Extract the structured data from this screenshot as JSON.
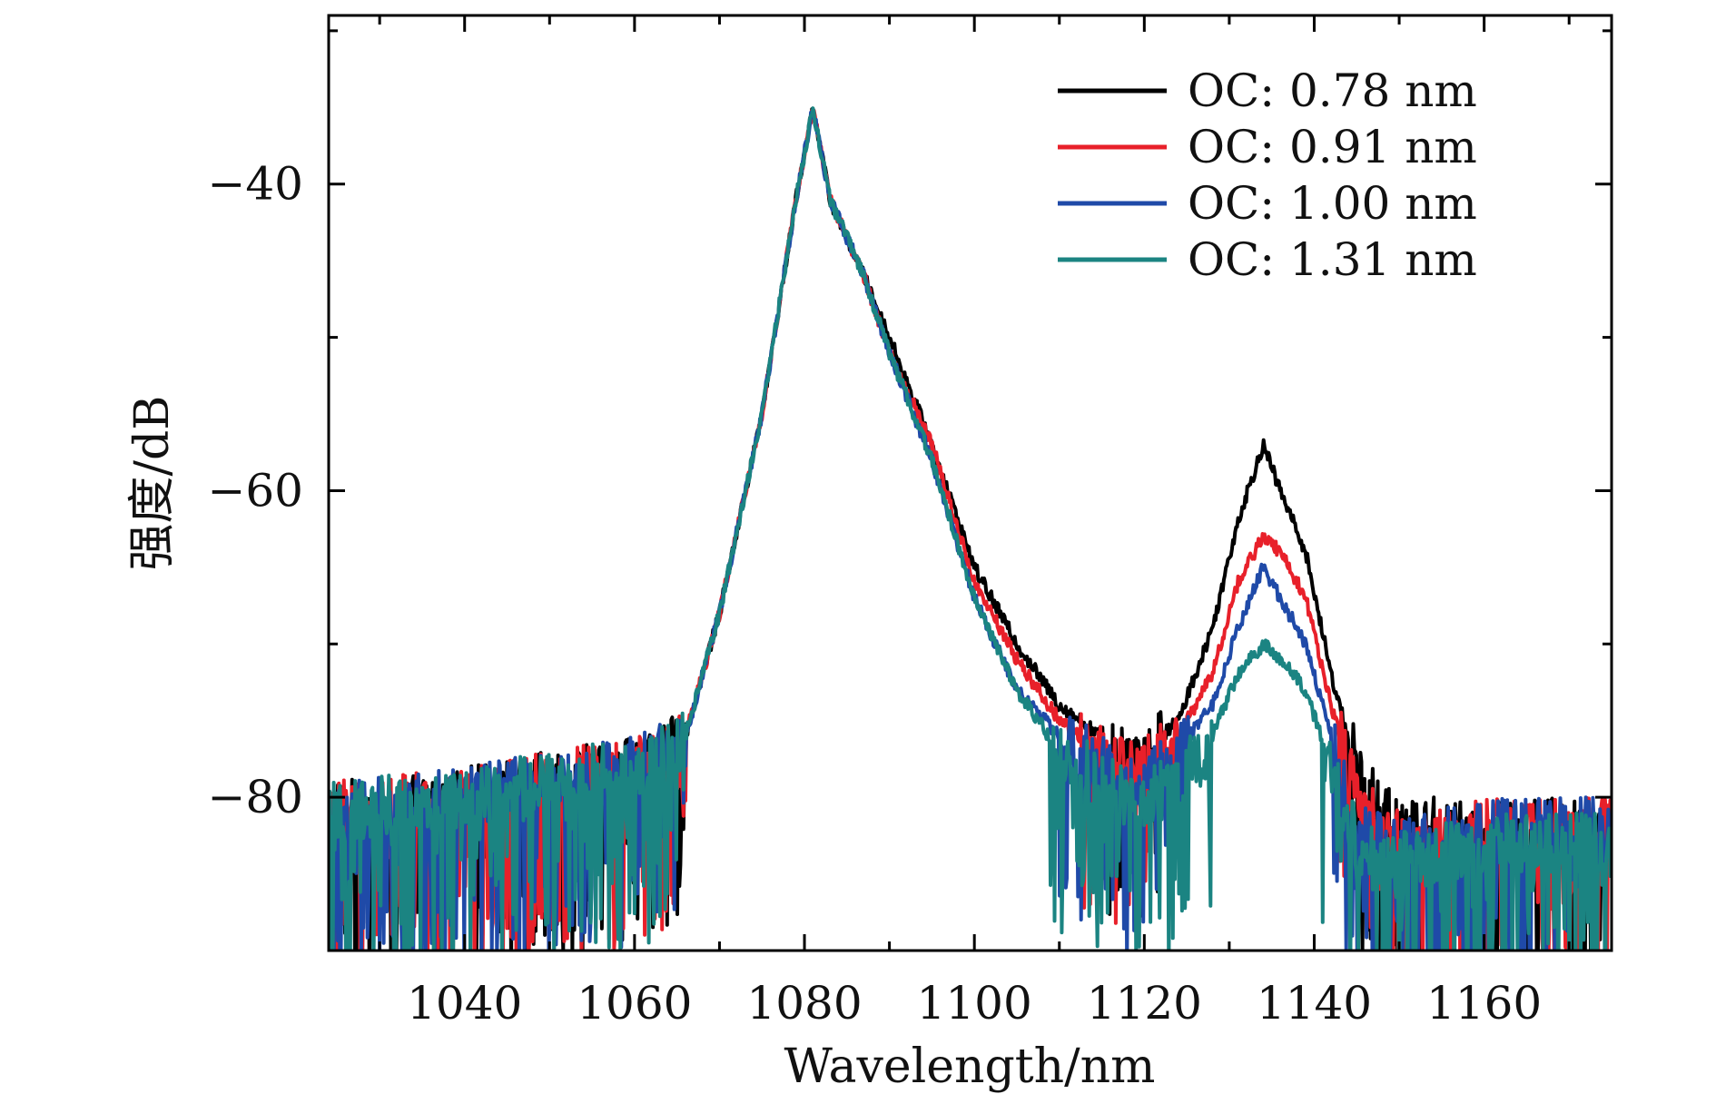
{
  "chart_data": {
    "type": "line",
    "title": "",
    "xlabel": "Wavelength/nm",
    "ylabel": "强度/dB",
    "xlim": [
      1024,
      1175
    ],
    "ylim": [
      -90,
      -29
    ],
    "xticks": [
      1040,
      1060,
      1080,
      1100,
      1120,
      1140,
      1160
    ],
    "xtick_labels": [
      "1040",
      "1060",
      "1080",
      "1100",
      "1120",
      "1140",
      "1160"
    ],
    "yticks": [
      -40,
      -60,
      -80
    ],
    "ytick_labels": [
      "−40",
      "−60",
      "−80"
    ],
    "grid": false,
    "legend_position": "top-right",
    "series": [
      {
        "name": "OC: 0.78 nm",
        "color": "#000000",
        "x": [
          1024,
          1040,
          1060,
          1064,
          1066,
          1070,
          1075,
          1079,
          1081,
          1083,
          1087,
          1090,
          1095,
          1100,
          1105,
          1110,
          1115,
          1118,
          1120,
          1124,
          1128,
          1131,
          1134,
          1136,
          1139,
          1142,
          1145,
          1148,
          1152,
          1160,
          1175
        ],
        "y": [
          -81,
          -80,
          -78,
          -77,
          -76,
          -68,
          -55,
          -41,
          -35,
          -41,
          -46,
          -50,
          -57,
          -65,
          -70,
          -74,
          -76,
          -77,
          -77,
          -75,
          -69,
          -62,
          -57,
          -60,
          -64,
          -72,
          -78,
          -81,
          -82,
          -82,
          -82
        ]
      },
      {
        "name": "OC: 0.91 nm",
        "color": "#e8202a",
        "x": [
          1024,
          1040,
          1060,
          1064,
          1066,
          1070,
          1075,
          1079,
          1081,
          1083,
          1087,
          1090,
          1095,
          1100,
          1105,
          1110,
          1115,
          1118,
          1120,
          1124,
          1128,
          1131,
          1134,
          1136,
          1139,
          1142,
          1145,
          1148,
          1152,
          1160,
          1175
        ],
        "y": [
          -81,
          -80,
          -78,
          -77,
          -76,
          -68,
          -55,
          -41,
          -35,
          -41,
          -46,
          -51,
          -57,
          -66,
          -71,
          -75,
          -77,
          -78,
          -78,
          -76,
          -72,
          -66,
          -63,
          -64,
          -67,
          -74,
          -80,
          -82,
          -83,
          -82,
          -82
        ]
      },
      {
        "name": "OC: 1.00 nm",
        "color": "#1f4aa8",
        "x": [
          1024,
          1040,
          1060,
          1064,
          1066,
          1070,
          1075,
          1079,
          1081,
          1083,
          1087,
          1090,
          1095,
          1100,
          1105,
          1110,
          1115,
          1118,
          1120,
          1124,
          1128,
          1131,
          1134,
          1136,
          1139,
          1142,
          1145,
          1148,
          1152,
          1160,
          1175
        ],
        "y": [
          -81,
          -80,
          -78,
          -77,
          -76,
          -68,
          -55,
          -41,
          -35,
          -41,
          -46,
          -51,
          -58,
          -67,
          -73,
          -76,
          -78,
          -79,
          -79,
          -77,
          -74,
          -69,
          -65,
          -67,
          -70,
          -76,
          -82,
          -83,
          -83,
          -82,
          -82
        ]
      },
      {
        "name": "OC: 1.31 nm",
        "color": "#1b8482",
        "x": [
          1024,
          1040,
          1060,
          1064,
          1066,
          1070,
          1075,
          1079,
          1081,
          1083,
          1087,
          1090,
          1095,
          1100,
          1105,
          1110,
          1115,
          1118,
          1120,
          1124,
          1128,
          1131,
          1134,
          1136,
          1139,
          1142,
          1145,
          1148,
          1152,
          1160,
          1175
        ],
        "y": [
          -81,
          -80,
          -78,
          -77,
          -76,
          -68,
          -55,
          -41,
          -35,
          -41,
          -46,
          -51,
          -58,
          -67,
          -73,
          -77,
          -79,
          -80,
          -80,
          -79,
          -76,
          -72,
          -70,
          -71,
          -73,
          -78,
          -83,
          -84,
          -84,
          -83,
          -83
        ]
      }
    ]
  }
}
